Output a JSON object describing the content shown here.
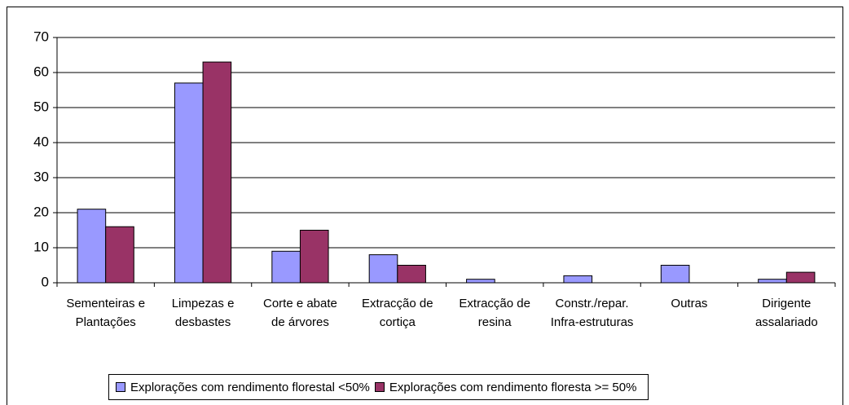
{
  "chart_data": {
    "type": "bar",
    "categories": [
      "Sementeiras e Plantações",
      "Limpezas e desbastes",
      "Corte e abate de árvores",
      "Extracção de cortiça",
      "Extracção de resina",
      "Constr./repar. Infra-estruturas",
      "Outras",
      "Dirigente assalariado"
    ],
    "series": [
      {
        "name": "Explorações com rendimento florestal <50%",
        "color": "#9999ff",
        "values": [
          21,
          57,
          9,
          8,
          1,
          2,
          5,
          1
        ]
      },
      {
        "name": "Explorações com rendimento floresta >= 50%",
        "color": "#993366",
        "values": [
          16,
          63,
          15,
          5,
          0,
          0,
          0,
          3
        ]
      }
    ],
    "ylim": [
      0,
      70
    ],
    "yticks": [
      0,
      10,
      20,
      30,
      40,
      50,
      60,
      70
    ],
    "grid": true,
    "legend": "bottom"
  }
}
